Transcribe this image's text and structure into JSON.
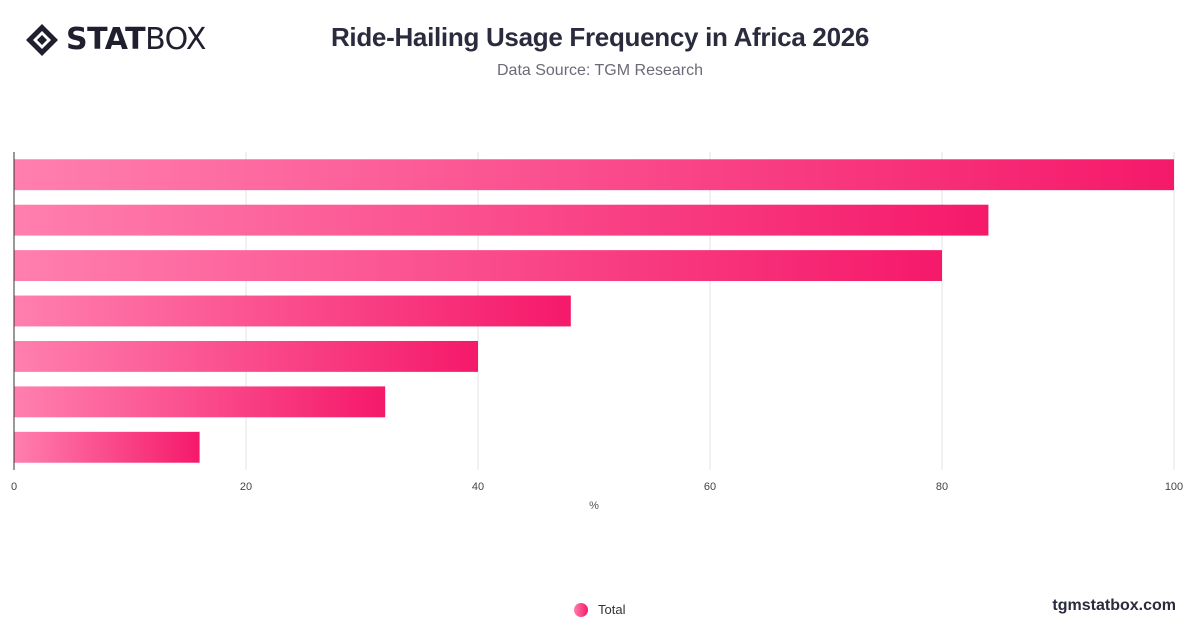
{
  "logo": {
    "bold": "STAT",
    "light": "BOX"
  },
  "title": "Ride-Hailing Usage Frequency in Africa 2026",
  "subtitle": "Data Source: TGM Research",
  "brand": "tgmstatbox.com",
  "colors": {
    "bar_start": "#ff7fae",
    "bar_end": "#f5196a",
    "grid": "#e3e3e3",
    "axis": "#333333"
  },
  "chart_data": {
    "type": "bar",
    "orientation": "horizontal",
    "categories": [
      "",
      "",
      "",
      "",
      "",
      "",
      ""
    ],
    "series": [
      {
        "name": "Total",
        "values": [
          100,
          84,
          80,
          48,
          40,
          32,
          16
        ]
      }
    ],
    "xlabel": "%",
    "ylabel": "",
    "xlim": [
      0,
      100
    ],
    "xticks": [
      0,
      20,
      40,
      60,
      80,
      100
    ],
    "grid": true,
    "legend": "bottom-center"
  }
}
